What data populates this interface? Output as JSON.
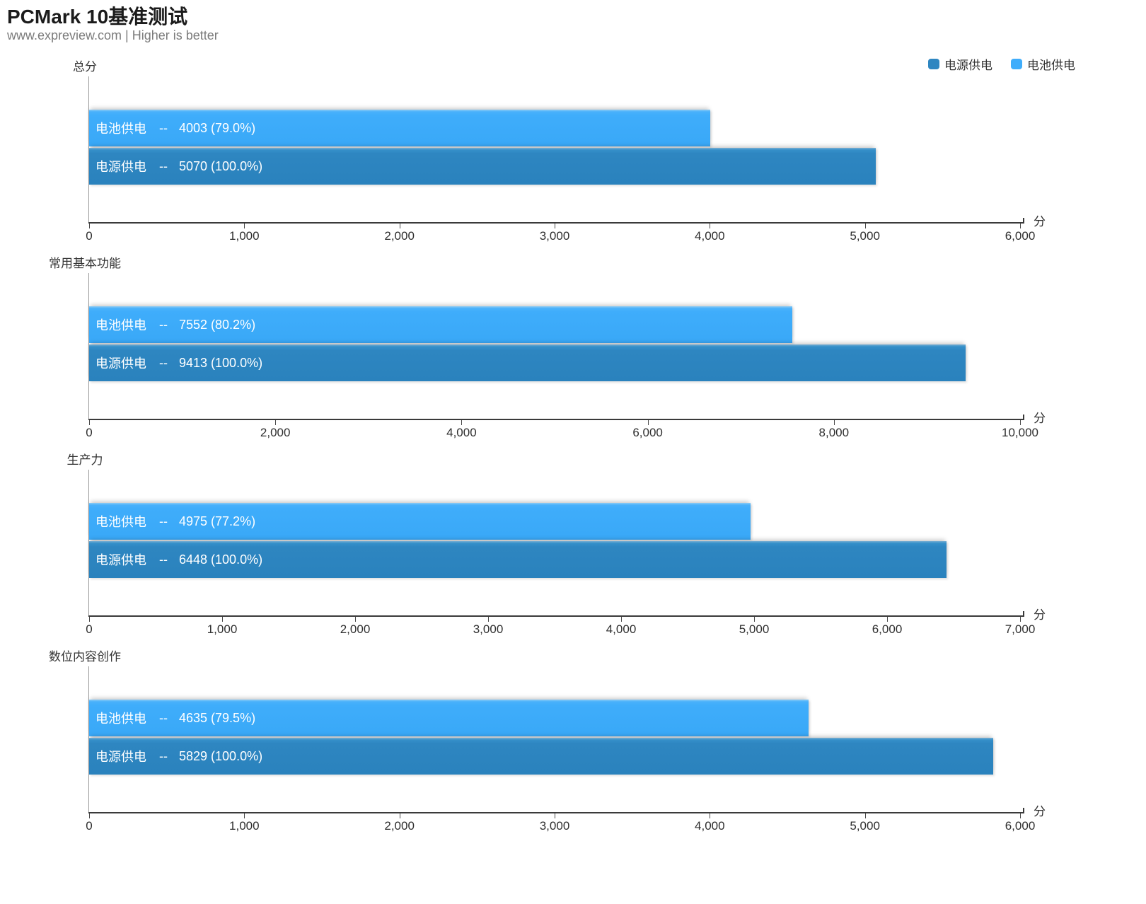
{
  "page": {
    "title": "PCMark 10基准测试",
    "subtitle": "www.expreview.com | Higher is better"
  },
  "legend": {
    "items": [
      {
        "label": "电源供电",
        "color": "#2e86c1"
      },
      {
        "label": "电池供电",
        "color": "#3fadfb"
      }
    ]
  },
  "axis_unit": "分",
  "bar_separator": "--",
  "colors": {
    "ac_power": "#2e86c1",
    "battery_power": "#3fadfb",
    "axis": "#3a3a3a",
    "text": "#333333",
    "bar_text": "#ffffff"
  },
  "chart_data": [
    {
      "type": "bar",
      "orientation": "horizontal",
      "title": "总分",
      "xlim": [
        0,
        6000
      ],
      "ticks": [
        "0",
        "1,000",
        "2,000",
        "3,000",
        "4,000",
        "5,000",
        "6,000"
      ],
      "series": [
        {
          "name": "电池供电",
          "variant": "battery",
          "value": 4003,
          "percent": "79.0%",
          "value_label": "4003 (79.0%)"
        },
        {
          "name": "电源供电",
          "variant": "ac",
          "value": 5070,
          "percent": "100.0%",
          "value_label": "5070 (100.0%)"
        }
      ]
    },
    {
      "type": "bar",
      "orientation": "horizontal",
      "title": "常用基本功能",
      "xlim": [
        0,
        10000
      ],
      "ticks": [
        "0",
        "2,000",
        "4,000",
        "6,000",
        "8,000",
        "10,000"
      ],
      "series": [
        {
          "name": "电池供电",
          "variant": "battery",
          "value": 7552,
          "percent": "80.2%",
          "value_label": "7552 (80.2%)"
        },
        {
          "name": "电源供电",
          "variant": "ac",
          "value": 9413,
          "percent": "100.0%",
          "value_label": "9413 (100.0%)"
        }
      ]
    },
    {
      "type": "bar",
      "orientation": "horizontal",
      "title": "生产力",
      "xlim": [
        0,
        7000
      ],
      "ticks": [
        "0",
        "1,000",
        "2,000",
        "3,000",
        "4,000",
        "5,000",
        "6,000",
        "7,000"
      ],
      "series": [
        {
          "name": "电池供电",
          "variant": "battery",
          "value": 4975,
          "percent": "77.2%",
          "value_label": "4975 (77.2%)"
        },
        {
          "name": "电源供电",
          "variant": "ac",
          "value": 6448,
          "percent": "100.0%",
          "value_label": "6448 (100.0%)"
        }
      ]
    },
    {
      "type": "bar",
      "orientation": "horizontal",
      "title": "数位内容创作",
      "xlim": [
        0,
        6000
      ],
      "ticks": [
        "0",
        "1,000",
        "2,000",
        "3,000",
        "4,000",
        "5,000",
        "6,000"
      ],
      "series": [
        {
          "name": "电池供电",
          "variant": "battery",
          "value": 4635,
          "percent": "79.5%",
          "value_label": "4635 (79.5%)"
        },
        {
          "name": "电源供电",
          "variant": "ac",
          "value": 5829,
          "percent": "100.0%",
          "value_label": "5829 (100.0%)"
        }
      ]
    }
  ]
}
